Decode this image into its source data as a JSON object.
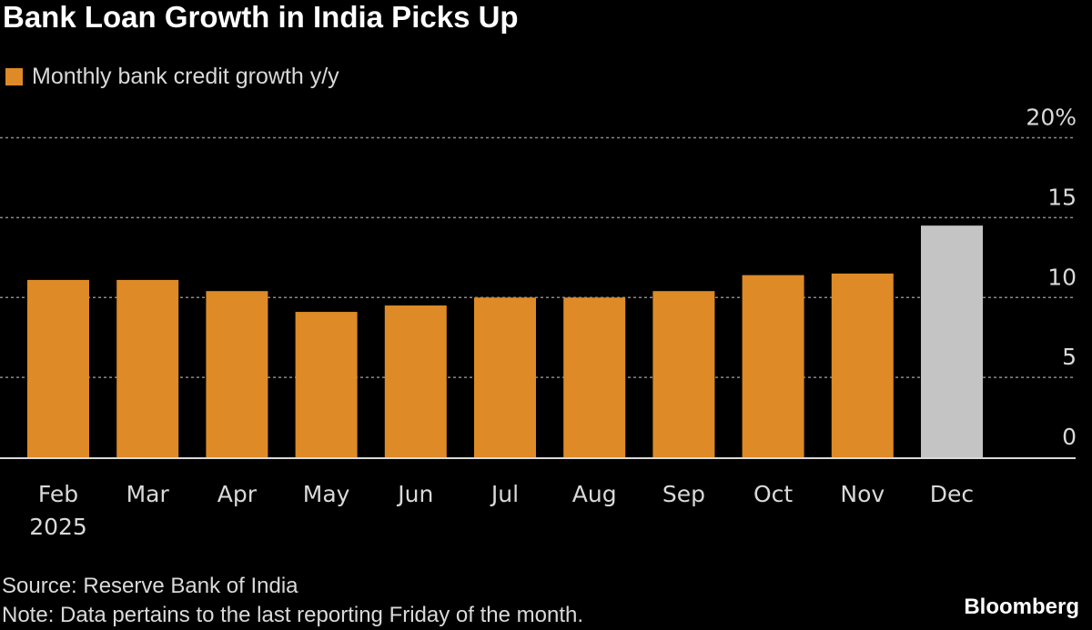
{
  "chart_data": {
    "type": "bar",
    "title": "Bank Loan Growth in India Picks Up",
    "legend": [
      {
        "name": "Monthly bank credit growth y/y",
        "color": "#dd8a27"
      }
    ],
    "legend_placement": "top-left",
    "categories": [
      "Feb",
      "Mar",
      "Apr",
      "May",
      "Jun",
      "Jul",
      "Aug",
      "Sep",
      "Oct",
      "Nov",
      "Dec"
    ],
    "x_sublabels": [
      "2025",
      "",
      "",
      "",
      "",
      "",
      "",
      "",
      "",
      "",
      ""
    ],
    "series": [
      {
        "name": "Monthly bank credit growth y/y",
        "values": [
          11.1,
          11.1,
          10.4,
          9.1,
          9.5,
          10.0,
          10.0,
          10.4,
          11.4,
          11.5,
          14.5
        ]
      }
    ],
    "bar_colors": [
      "#dd8a27",
      "#dd8a27",
      "#dd8a27",
      "#dd8a27",
      "#dd8a27",
      "#dd8a27",
      "#dd8a27",
      "#dd8a27",
      "#dd8a27",
      "#dd8a27",
      "#c4c4c4"
    ],
    "ylim": [
      0,
      20
    ],
    "yticks": [
      0,
      5,
      10,
      15,
      20
    ],
    "ytick_labels": [
      "0",
      "5",
      "10",
      "15",
      "20%"
    ],
    "y_axis_side": "right",
    "grid": true,
    "xlabel": "",
    "ylabel": ""
  },
  "footer": {
    "source": "Source: Reserve Bank of India",
    "note": "Note: Data pertains to the last reporting Friday of the month."
  },
  "logo": "Bloomberg"
}
